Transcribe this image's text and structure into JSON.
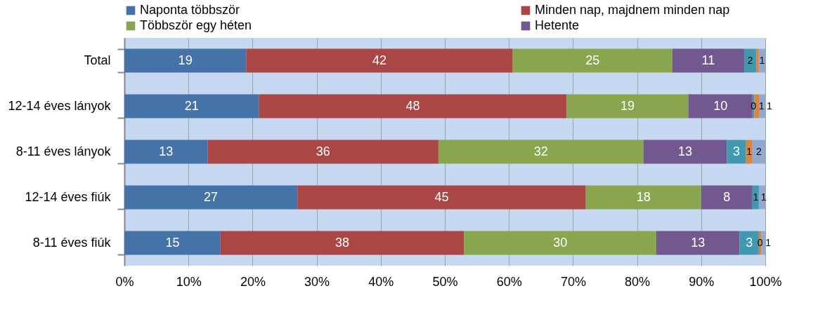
{
  "chart_data": {
    "type": "bar",
    "orientation": "horizontal",
    "stacked": true,
    "categories": [
      "Total",
      "12-14 éves lányok",
      "8-11 éves lányok",
      "12-14 éves fiúk",
      "8-11 éves fiúk"
    ],
    "series": [
      {
        "name": "Naponta többször",
        "color": "#4572a7",
        "values": [
          19,
          21,
          13,
          27,
          15
        ],
        "value_labels": [
          "19",
          "21",
          "13",
          "27",
          "15"
        ]
      },
      {
        "name": "Minden nap, majdnem minden nap",
        "color": "#aa4643",
        "values": [
          41.6,
          48,
          36,
          45,
          38
        ],
        "value_labels": [
          "42",
          "48",
          "36",
          "45",
          "38"
        ]
      },
      {
        "name": "Többször egy héten",
        "color": "#89a54e",
        "values": [
          24.9,
          19,
          32,
          18,
          30
        ],
        "value_labels": [
          "25",
          "19",
          "32",
          "18",
          "30"
        ]
      },
      {
        "name": "Hetente",
        "color": "#71588f",
        "values": [
          11.2,
          10,
          13,
          8,
          13
        ],
        "value_labels": [
          "11",
          "10",
          "13",
          "8",
          "13"
        ]
      },
      {
        "color": "#4198af",
        "values": [
          1.9,
          0.3,
          3,
          1,
          3
        ],
        "value_labels": [
          "2",
          "0",
          "3",
          "1",
          "3"
        ]
      },
      {
        "color": "#db843d",
        "values": [
          0.4,
          0.8,
          1,
          0,
          0.4
        ],
        "value_labels": [
          null,
          "1",
          "1",
          null,
          "0"
        ]
      },
      {
        "color": "#93a9cf",
        "values": [
          1,
          0.9,
          2,
          1,
          0.6
        ],
        "value_labels": [
          "1",
          "1",
          "2",
          "1",
          "1"
        ]
      }
    ],
    "xlim": [
      0,
      100
    ],
    "xticks": [
      {
        "value": 0,
        "label": "0%"
      },
      {
        "value": 10,
        "label": "10%"
      },
      {
        "value": 20,
        "label": "20%"
      },
      {
        "value": 30,
        "label": "30%"
      },
      {
        "value": 40,
        "label": "40%"
      },
      {
        "value": 50,
        "label": "50%"
      },
      {
        "value": 60,
        "label": "60%"
      },
      {
        "value": 70,
        "label": "70%"
      },
      {
        "value": 80,
        "label": "80%"
      },
      {
        "value": 90,
        "label": "90%"
      },
      {
        "value": 100,
        "label": "100%"
      }
    ],
    "grid": "x",
    "legend": "top"
  }
}
